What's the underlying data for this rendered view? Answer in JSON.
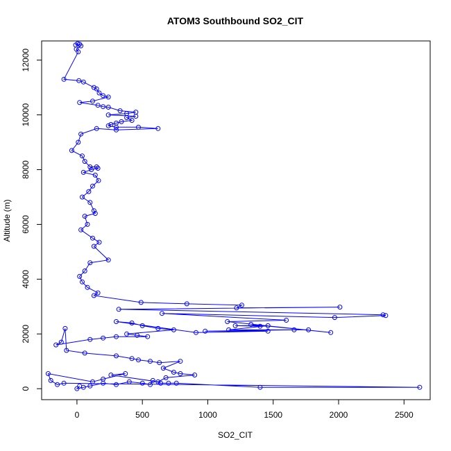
{
  "chart_data": {
    "type": "scatter",
    "title": "ATOM3 Southbound SO2_CIT",
    "xlabel": "SO2_CIT",
    "ylabel": "Altitude (m)",
    "xlim": [
      -270,
      2700
    ],
    "ylim": [
      -400,
      12700
    ],
    "x_ticks": [
      0,
      500,
      1000,
      1500,
      2000,
      2500
    ],
    "y_ticks": [
      0,
      2000,
      4000,
      6000,
      8000,
      10000,
      12000
    ],
    "grid": false,
    "legend": "none",
    "marker": "open-circle",
    "connected": true,
    "color": "#0000ff",
    "series": [
      {
        "points": [
          [
            5,
            12600
          ],
          [
            -10,
            12550
          ],
          [
            20,
            12580
          ],
          [
            30,
            12520
          ],
          [
            -5,
            12400
          ],
          [
            10,
            12300
          ],
          [
            -100,
            11300
          ],
          [
            15,
            11250
          ],
          [
            50,
            11200
          ],
          [
            130,
            11000
          ],
          [
            150,
            10950
          ],
          [
            170,
            10800
          ],
          [
            200,
            10700
          ],
          [
            240,
            10650
          ],
          [
            120,
            10500
          ],
          [
            20,
            10450
          ],
          [
            160,
            10350
          ],
          [
            200,
            10300
          ],
          [
            240,
            10280
          ],
          [
            330,
            10150
          ],
          [
            450,
            10100
          ],
          [
            380,
            10050
          ],
          [
            240,
            10000
          ],
          [
            450,
            9950
          ],
          [
            380,
            9900
          ],
          [
            420,
            9800
          ],
          [
            340,
            9750
          ],
          [
            300,
            9700
          ],
          [
            260,
            9650
          ],
          [
            240,
            9600
          ],
          [
            300,
            9550
          ],
          [
            470,
            9550
          ],
          [
            620,
            9500
          ],
          [
            300,
            9450
          ],
          [
            150,
            9500
          ],
          [
            30,
            9300
          ],
          [
            10,
            9000
          ],
          [
            -40,
            8700
          ],
          [
            40,
            8500
          ],
          [
            60,
            8300
          ],
          [
            100,
            8100
          ],
          [
            150,
            8100
          ],
          [
            160,
            8050
          ],
          [
            110,
            8000
          ],
          [
            50,
            7900
          ],
          [
            140,
            7800
          ],
          [
            165,
            7600
          ],
          [
            120,
            7400
          ],
          [
            90,
            7200
          ],
          [
            40,
            7000
          ],
          [
            100,
            6800
          ],
          [
            130,
            6500
          ],
          [
            140,
            6400
          ],
          [
            60,
            6300
          ],
          [
            80,
            6000
          ],
          [
            30,
            5800
          ],
          [
            120,
            5500
          ],
          [
            170,
            5350
          ],
          [
            130,
            5200
          ],
          [
            240,
            4700
          ],
          [
            100,
            4600
          ],
          [
            60,
            4300
          ],
          [
            20,
            4100
          ],
          [
            40,
            3900
          ],
          [
            80,
            3700
          ],
          [
            160,
            3500
          ],
          [
            130,
            3400
          ],
          [
            490,
            3150
          ],
          [
            840,
            3100
          ],
          [
            1260,
            3050
          ],
          [
            1220,
            2950
          ],
          [
            2010,
            2980
          ],
          [
            320,
            2900
          ],
          [
            2340,
            2700
          ],
          [
            2360,
            2670
          ],
          [
            1970,
            2600
          ],
          [
            650,
            2750
          ],
          [
            1600,
            2500
          ],
          [
            1150,
            2450
          ],
          [
            1940,
            2050
          ],
          [
            1330,
            2350
          ],
          [
            1400,
            2280
          ],
          [
            1210,
            2300
          ],
          [
            1460,
            2300
          ],
          [
            1160,
            2150
          ],
          [
            1770,
            2150
          ],
          [
            1660,
            2150
          ],
          [
            980,
            2100
          ],
          [
            1460,
            2100
          ],
          [
            910,
            2050
          ],
          [
            300,
            2450
          ],
          [
            420,
            2400
          ],
          [
            500,
            2300
          ],
          [
            620,
            2200
          ],
          [
            740,
            2150
          ],
          [
            380,
            2000
          ],
          [
            460,
            1950
          ],
          [
            540,
            1900
          ],
          [
            300,
            1900
          ],
          [
            200,
            1850
          ],
          [
            100,
            1800
          ],
          [
            -160,
            1600
          ],
          [
            -120,
            1700
          ],
          [
            -90,
            2200
          ],
          [
            -80,
            1400
          ],
          [
            60,
            1300
          ],
          [
            300,
            1200
          ],
          [
            420,
            1100
          ],
          [
            470,
            1050
          ],
          [
            560,
            1000
          ],
          [
            630,
            950
          ],
          [
            790,
            1000
          ],
          [
            660,
            750
          ],
          [
            740,
            600
          ],
          [
            790,
            550
          ],
          [
            900,
            500
          ],
          [
            680,
            400
          ],
          [
            620,
            250
          ],
          [
            260,
            500
          ],
          [
            370,
            550
          ],
          [
            200,
            350
          ],
          [
            120,
            250
          ],
          [
            -220,
            550
          ],
          [
            -200,
            300
          ],
          [
            -150,
            150
          ],
          [
            -100,
            200
          ],
          [
            2620,
            50
          ],
          [
            1400,
            50
          ],
          [
            760,
            200
          ],
          [
            700,
            200
          ],
          [
            640,
            200
          ],
          [
            580,
            300
          ],
          [
            560,
            150
          ],
          [
            500,
            200
          ],
          [
            400,
            250
          ],
          [
            300,
            150
          ],
          [
            200,
            200
          ],
          [
            100,
            100
          ],
          [
            50,
            50
          ],
          [
            0,
            0
          ],
          [
            20,
            100
          ]
        ]
      }
    ]
  }
}
